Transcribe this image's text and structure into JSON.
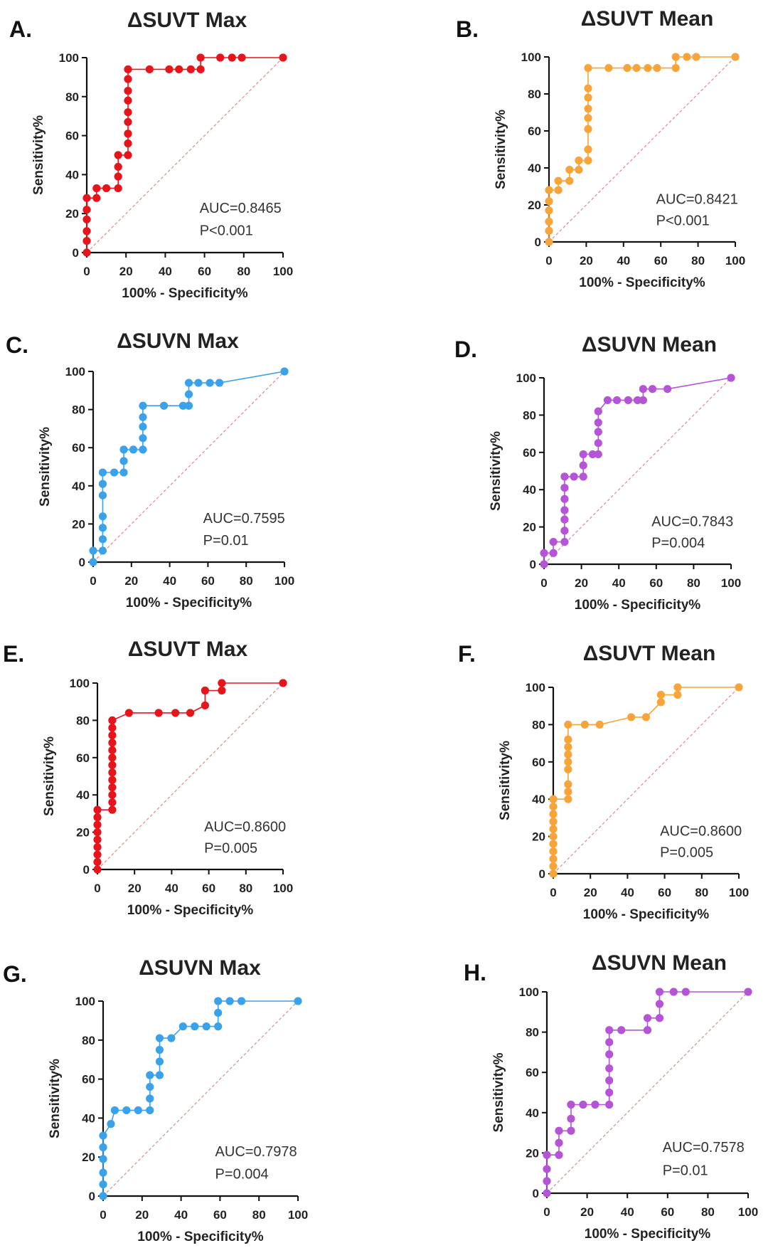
{
  "figure": {
    "xlabel": "100% - Specificity%",
    "ylabel": "Sensitivity%"
  },
  "chart_data": [
    {
      "type": "line",
      "panel_label": "A.",
      "title": "ΔSUVT Max",
      "color": "#e8141b",
      "auc_text": "AUC=0.8465",
      "p_text": "P<0.001",
      "xlabel": "100% - Specificity%",
      "ylabel": "Sensitivity%",
      "xlim": [
        0,
        100
      ],
      "ylim": [
        0,
        100
      ],
      "xticks": [
        0,
        20,
        40,
        60,
        80,
        100
      ],
      "yticks": [
        0,
        20,
        40,
        60,
        80,
        100
      ],
      "reference_line": true,
      "points": [
        [
          0,
          0
        ],
        [
          0,
          6
        ],
        [
          0,
          11
        ],
        [
          0,
          17
        ],
        [
          0,
          22
        ],
        [
          0,
          28
        ],
        [
          5,
          28
        ],
        [
          5,
          33
        ],
        [
          10,
          33
        ],
        [
          16,
          33
        ],
        [
          16,
          39
        ],
        [
          16,
          44
        ],
        [
          16,
          50
        ],
        [
          21,
          50
        ],
        [
          21,
          56
        ],
        [
          21,
          61
        ],
        [
          21,
          67
        ],
        [
          21,
          72
        ],
        [
          21,
          78
        ],
        [
          21,
          83
        ],
        [
          21,
          89
        ],
        [
          21,
          94
        ],
        [
          32,
          94
        ],
        [
          42,
          94
        ],
        [
          47,
          94
        ],
        [
          53,
          94
        ],
        [
          58,
          94
        ],
        [
          58,
          100
        ],
        [
          68,
          100
        ],
        [
          74,
          100
        ],
        [
          79,
          100
        ],
        [
          100,
          100
        ]
      ]
    },
    {
      "type": "line",
      "panel_label": "B.",
      "title": "ΔSUVT Mean",
      "color": "#f7a43a",
      "auc_text": "AUC=0.8421",
      "p_text": "P<0.001",
      "xlabel": "100% - Specificity%",
      "ylabel": "Sensitivity%",
      "xlim": [
        0,
        100
      ],
      "ylim": [
        0,
        100
      ],
      "xticks": [
        0,
        20,
        40,
        60,
        80,
        100
      ],
      "yticks": [
        0,
        20,
        40,
        60,
        80,
        100
      ],
      "reference_line": true,
      "points": [
        [
          0,
          0
        ],
        [
          0,
          6
        ],
        [
          0,
          11
        ],
        [
          0,
          17
        ],
        [
          0,
          22
        ],
        [
          0,
          28
        ],
        [
          5,
          28
        ],
        [
          5,
          33
        ],
        [
          11,
          33
        ],
        [
          11,
          39
        ],
        [
          16,
          39
        ],
        [
          16,
          44
        ],
        [
          21,
          44
        ],
        [
          21,
          50
        ],
        [
          21,
          61
        ],
        [
          21,
          67
        ],
        [
          21,
          72
        ],
        [
          21,
          78
        ],
        [
          21,
          83
        ],
        [
          21,
          94
        ],
        [
          32,
          94
        ],
        [
          42,
          94
        ],
        [
          47,
          94
        ],
        [
          53,
          94
        ],
        [
          58,
          94
        ],
        [
          68,
          94
        ],
        [
          68,
          100
        ],
        [
          74,
          100
        ],
        [
          79,
          100
        ],
        [
          100,
          100
        ]
      ]
    },
    {
      "type": "line",
      "panel_label": "C.",
      "title": "ΔSUVN Max",
      "color": "#3aa2ea",
      "auc_text": "AUC=0.7595",
      "p_text": "P=0.01",
      "xlabel": "100% - Specificity%",
      "ylabel": "Sensitivity%",
      "xlim": [
        0,
        100
      ],
      "ylim": [
        0,
        100
      ],
      "xticks": [
        0,
        20,
        40,
        60,
        80,
        100
      ],
      "yticks": [
        0,
        20,
        40,
        60,
        80,
        100
      ],
      "reference_line": true,
      "points": [
        [
          0,
          0
        ],
        [
          0,
          6
        ],
        [
          5,
          6
        ],
        [
          5,
          12
        ],
        [
          5,
          18
        ],
        [
          5,
          24
        ],
        [
          5,
          35
        ],
        [
          5,
          41
        ],
        [
          5,
          47
        ],
        [
          11,
          47
        ],
        [
          16,
          47
        ],
        [
          16,
          53
        ],
        [
          16,
          59
        ],
        [
          21,
          59
        ],
        [
          26,
          59
        ],
        [
          26,
          65
        ],
        [
          26,
          71
        ],
        [
          26,
          76
        ],
        [
          26,
          82
        ],
        [
          37,
          82
        ],
        [
          47,
          82
        ],
        [
          50,
          82
        ],
        [
          50,
          88
        ],
        [
          50,
          94
        ],
        [
          55,
          94
        ],
        [
          61,
          94
        ],
        [
          66,
          94
        ],
        [
          100,
          100
        ]
      ]
    },
    {
      "type": "line",
      "panel_label": "D.",
      "title": "ΔSUVN Mean",
      "color": "#b554d6",
      "auc_text": "AUC=0.7843",
      "p_text": "P=0.004",
      "xlabel": "100% - Specificity%",
      "ylabel": "Sensitivity%",
      "xlim": [
        0,
        100
      ],
      "ylim": [
        0,
        100
      ],
      "xticks": [
        0,
        20,
        40,
        60,
        80,
        100
      ],
      "yticks": [
        0,
        20,
        40,
        60,
        80,
        100
      ],
      "reference_line": true,
      "points": [
        [
          0,
          0
        ],
        [
          0,
          6
        ],
        [
          5,
          6
        ],
        [
          5,
          12
        ],
        [
          11,
          12
        ],
        [
          11,
          18
        ],
        [
          11,
          24
        ],
        [
          11,
          29
        ],
        [
          11,
          35
        ],
        [
          11,
          41
        ],
        [
          11,
          47
        ],
        [
          16,
          47
        ],
        [
          21,
          47
        ],
        [
          21,
          53
        ],
        [
          21,
          59
        ],
        [
          26,
          59
        ],
        [
          29,
          59
        ],
        [
          29,
          65
        ],
        [
          29,
          71
        ],
        [
          29,
          76
        ],
        [
          29,
          82
        ],
        [
          34,
          88
        ],
        [
          39,
          88
        ],
        [
          45,
          88
        ],
        [
          50,
          88
        ],
        [
          53,
          88
        ],
        [
          53,
          94
        ],
        [
          58,
          94
        ],
        [
          66,
          94
        ],
        [
          100,
          100
        ]
      ]
    },
    {
      "type": "line",
      "panel_label": "E.",
      "title": "ΔSUVT Max",
      "color": "#e8141b",
      "auc_text": "AUC=0.8600",
      "p_text": "P=0.005",
      "xlabel": "100% - Specificity%",
      "ylabel": "Sensitivity%",
      "xlim": [
        0,
        100
      ],
      "ylim": [
        0,
        100
      ],
      "xticks": [
        0,
        20,
        40,
        60,
        80,
        100
      ],
      "yticks": [
        0,
        20,
        40,
        60,
        80,
        100
      ],
      "reference_line": true,
      "points": [
        [
          0,
          0
        ],
        [
          0,
          4
        ],
        [
          0,
          8
        ],
        [
          0,
          12
        ],
        [
          0,
          16
        ],
        [
          0,
          20
        ],
        [
          0,
          24
        ],
        [
          0,
          28
        ],
        [
          0,
          32
        ],
        [
          8,
          32
        ],
        [
          8,
          36
        ],
        [
          8,
          40
        ],
        [
          8,
          44
        ],
        [
          8,
          48
        ],
        [
          8,
          52
        ],
        [
          8,
          56
        ],
        [
          8,
          60
        ],
        [
          8,
          64
        ],
        [
          8,
          68
        ],
        [
          8,
          72
        ],
        [
          8,
          76
        ],
        [
          8,
          80
        ],
        [
          17,
          84
        ],
        [
          33,
          84
        ],
        [
          42,
          84
        ],
        [
          50,
          84
        ],
        [
          58,
          88
        ],
        [
          58,
          96
        ],
        [
          67,
          96
        ],
        [
          67,
          100
        ],
        [
          100,
          100
        ]
      ]
    },
    {
      "type": "line",
      "panel_label": "F.",
      "title": "ΔSUVT Mean",
      "color": "#f7a43a",
      "auc_text": "AUC=0.8600",
      "p_text": "P=0.005",
      "xlabel": "100% - Specificity%",
      "ylabel": "Sensitivity%",
      "xlim": [
        0,
        100
      ],
      "ylim": [
        0,
        100
      ],
      "xticks": [
        0,
        20,
        40,
        60,
        80,
        100
      ],
      "yticks": [
        0,
        20,
        40,
        60,
        80,
        100
      ],
      "reference_line": true,
      "points": [
        [
          0,
          0
        ],
        [
          0,
          4
        ],
        [
          0,
          8
        ],
        [
          0,
          12
        ],
        [
          0,
          16
        ],
        [
          0,
          20
        ],
        [
          0,
          24
        ],
        [
          0,
          28
        ],
        [
          0,
          32
        ],
        [
          0,
          36
        ],
        [
          0,
          40
        ],
        [
          8,
          40
        ],
        [
          8,
          44
        ],
        [
          8,
          48
        ],
        [
          8,
          56
        ],
        [
          8,
          60
        ],
        [
          8,
          64
        ],
        [
          8,
          68
        ],
        [
          8,
          72
        ],
        [
          8,
          80
        ],
        [
          17,
          80
        ],
        [
          25,
          80
        ],
        [
          42,
          84
        ],
        [
          50,
          84
        ],
        [
          58,
          92
        ],
        [
          58,
          96
        ],
        [
          67,
          96
        ],
        [
          67,
          100
        ],
        [
          100,
          100
        ]
      ]
    },
    {
      "type": "line",
      "panel_label": "G.",
      "title": "ΔSUVN Max",
      "color": "#3aa2ea",
      "auc_text": "AUC=0.7978",
      "p_text": "P=0.004",
      "xlabel": "100% - Specificity%",
      "ylabel": "Sensitivity%",
      "xlim": [
        0,
        100
      ],
      "ylim": [
        0,
        100
      ],
      "xticks": [
        0,
        20,
        40,
        60,
        80,
        100
      ],
      "yticks": [
        0,
        20,
        40,
        60,
        80,
        100
      ],
      "reference_line": true,
      "points": [
        [
          0,
          0
        ],
        [
          0,
          6
        ],
        [
          0,
          12
        ],
        [
          0,
          19
        ],
        [
          0,
          25
        ],
        [
          0,
          31
        ],
        [
          4,
          37
        ],
        [
          6,
          44
        ],
        [
          12,
          44
        ],
        [
          18,
          44
        ],
        [
          24,
          44
        ],
        [
          24,
          50
        ],
        [
          24,
          56
        ],
        [
          24,
          62
        ],
        [
          29,
          62
        ],
        [
          29,
          69
        ],
        [
          29,
          75
        ],
        [
          29,
          81
        ],
        [
          35,
          81
        ],
        [
          41,
          87
        ],
        [
          47,
          87
        ],
        [
          53,
          87
        ],
        [
          59,
          87
        ],
        [
          59,
          94
        ],
        [
          59,
          100
        ],
        [
          65,
          100
        ],
        [
          71,
          100
        ],
        [
          100,
          100
        ]
      ]
    },
    {
      "type": "line",
      "panel_label": "H.",
      "title": "ΔSUVN Mean",
      "color": "#b554d6",
      "auc_text": "AUC=0.7578",
      "p_text": "P=0.01",
      "xlabel": "100% - Specificity%",
      "ylabel": "Sensitivity%",
      "xlim": [
        0,
        100
      ],
      "ylim": [
        0,
        100
      ],
      "xticks": [
        0,
        20,
        40,
        60,
        80,
        100
      ],
      "yticks": [
        0,
        20,
        40,
        60,
        80,
        100
      ],
      "reference_line": true,
      "points": [
        [
          0,
          0
        ],
        [
          0,
          6
        ],
        [
          0,
          12
        ],
        [
          0,
          19
        ],
        [
          6,
          19
        ],
        [
          6,
          25
        ],
        [
          6,
          31
        ],
        [
          12,
          31
        ],
        [
          12,
          37
        ],
        [
          12,
          44
        ],
        [
          18,
          44
        ],
        [
          24,
          44
        ],
        [
          31,
          44
        ],
        [
          31,
          50
        ],
        [
          31,
          56
        ],
        [
          31,
          62
        ],
        [
          31,
          69
        ],
        [
          31,
          75
        ],
        [
          31,
          81
        ],
        [
          37,
          81
        ],
        [
          50,
          81
        ],
        [
          50,
          87
        ],
        [
          56,
          87
        ],
        [
          56,
          94
        ],
        [
          56,
          100
        ],
        [
          63,
          100
        ],
        [
          69,
          100
        ],
        [
          100,
          100
        ]
      ]
    }
  ]
}
